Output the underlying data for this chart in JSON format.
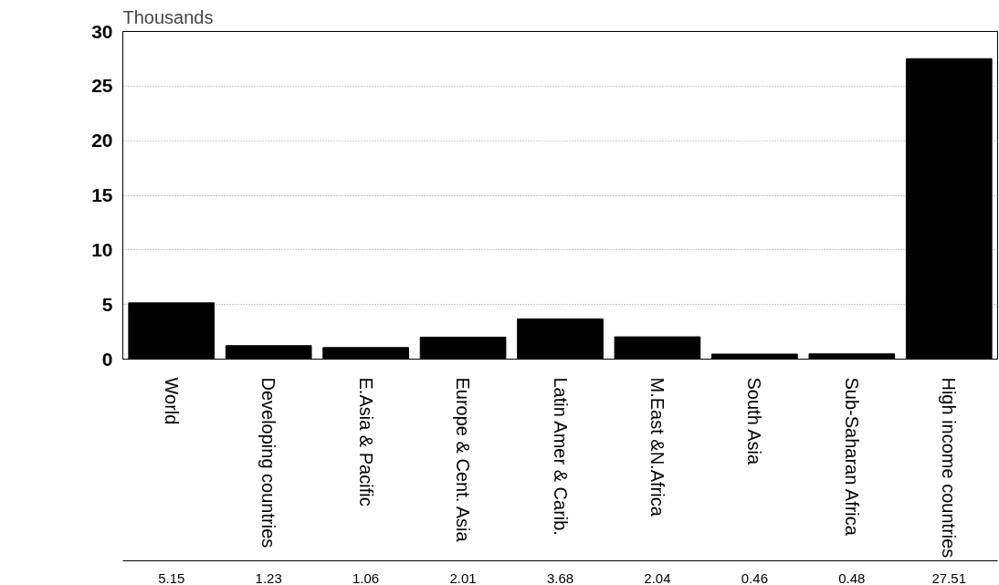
{
  "chart_data": {
    "type": "bar",
    "ylabel": "Thousands",
    "categories": [
      "World",
      "Developing countries",
      "E.Asia & Pacific",
      "Europe & Cent. Asia",
      "Latin Amer & Carib.",
      "M.East &N.Africa",
      "South Asia",
      "Sub-Saharan Africa",
      "High income countries"
    ],
    "values": [
      5.15,
      1.23,
      1.06,
      2.01,
      3.68,
      2.04,
      0.46,
      0.48,
      27.51
    ],
    "color": "#000000",
    "ylim": [
      0,
      30
    ],
    "yticks": [
      0,
      5,
      10,
      15,
      20,
      25,
      30
    ],
    "grid": "y",
    "data_labels": true
  }
}
